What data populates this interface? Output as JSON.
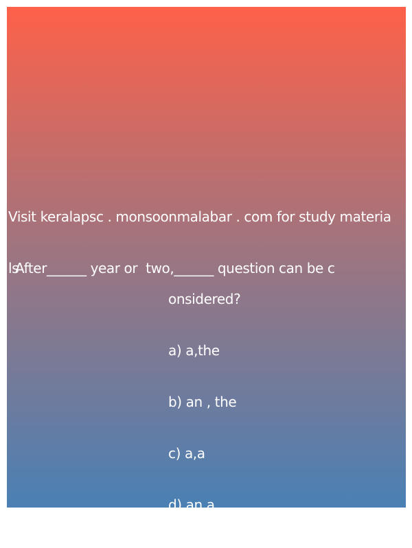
{
  "visit_line_1": "Visit keralapsc . monsoonmalabar . com for study materia",
  "visit_line_2": "ls",
  "question_line_1": "After______ year or  two,______ question can be c",
  "question_line_2": "onsidered?",
  "options": [
    "a) a,the",
    "b) an , the",
    "c) a,a",
    "d) an,a"
  ]
}
